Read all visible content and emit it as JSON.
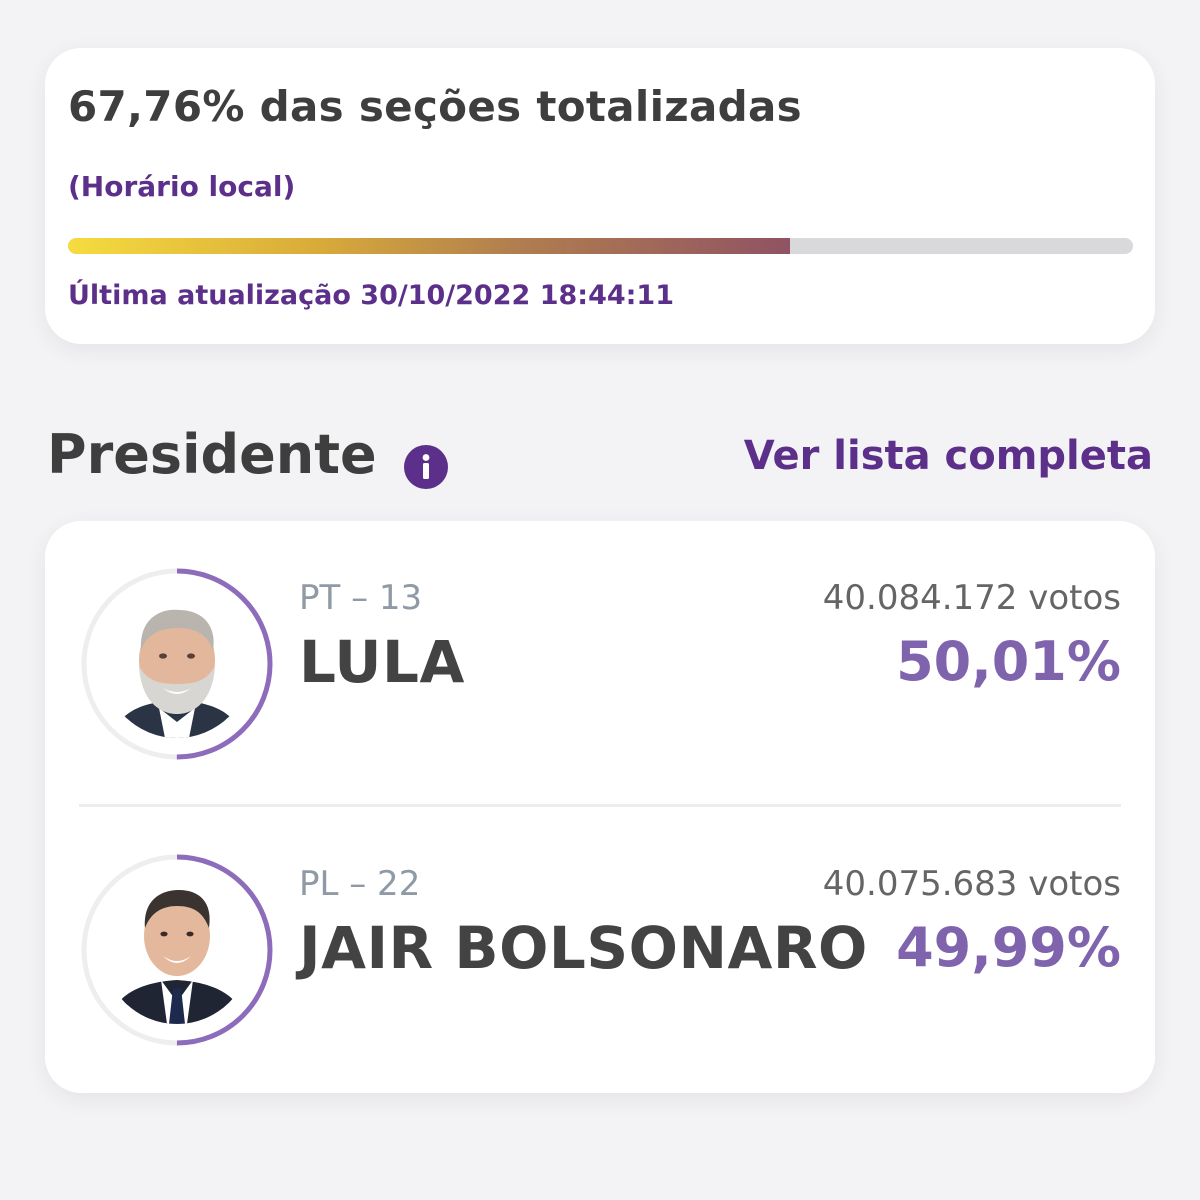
{
  "progress": {
    "title": "67,76% das seções totalizadas",
    "local_time_label": "(Horário local)",
    "percent": 67.76,
    "last_update": "Última atualização 30/10/2022 18:44:11",
    "colors": {
      "gradient_start": "#f5dc3f",
      "gradient_end": "#8f5363",
      "track": "#d9d8da"
    }
  },
  "section": {
    "title": "Presidente",
    "info_icon": "info-icon",
    "see_list_label": "Ver lista completa"
  },
  "candidates": [
    {
      "party": "PT – 13",
      "name": "LULA",
      "votes": "40.084.172 votos",
      "percent_label": "50,01%",
      "percent": 50.01
    },
    {
      "party": "PL – 22",
      "name": "JAIR BOLSONARO",
      "votes": "40.075.683 votos",
      "percent_label": "49,99%",
      "percent": 49.99
    }
  ],
  "colors": {
    "accent": "#5b2f8a",
    "percent": "#7f64ad",
    "ring": "#8d6cbb",
    "ring_track": "#eeeeee"
  }
}
